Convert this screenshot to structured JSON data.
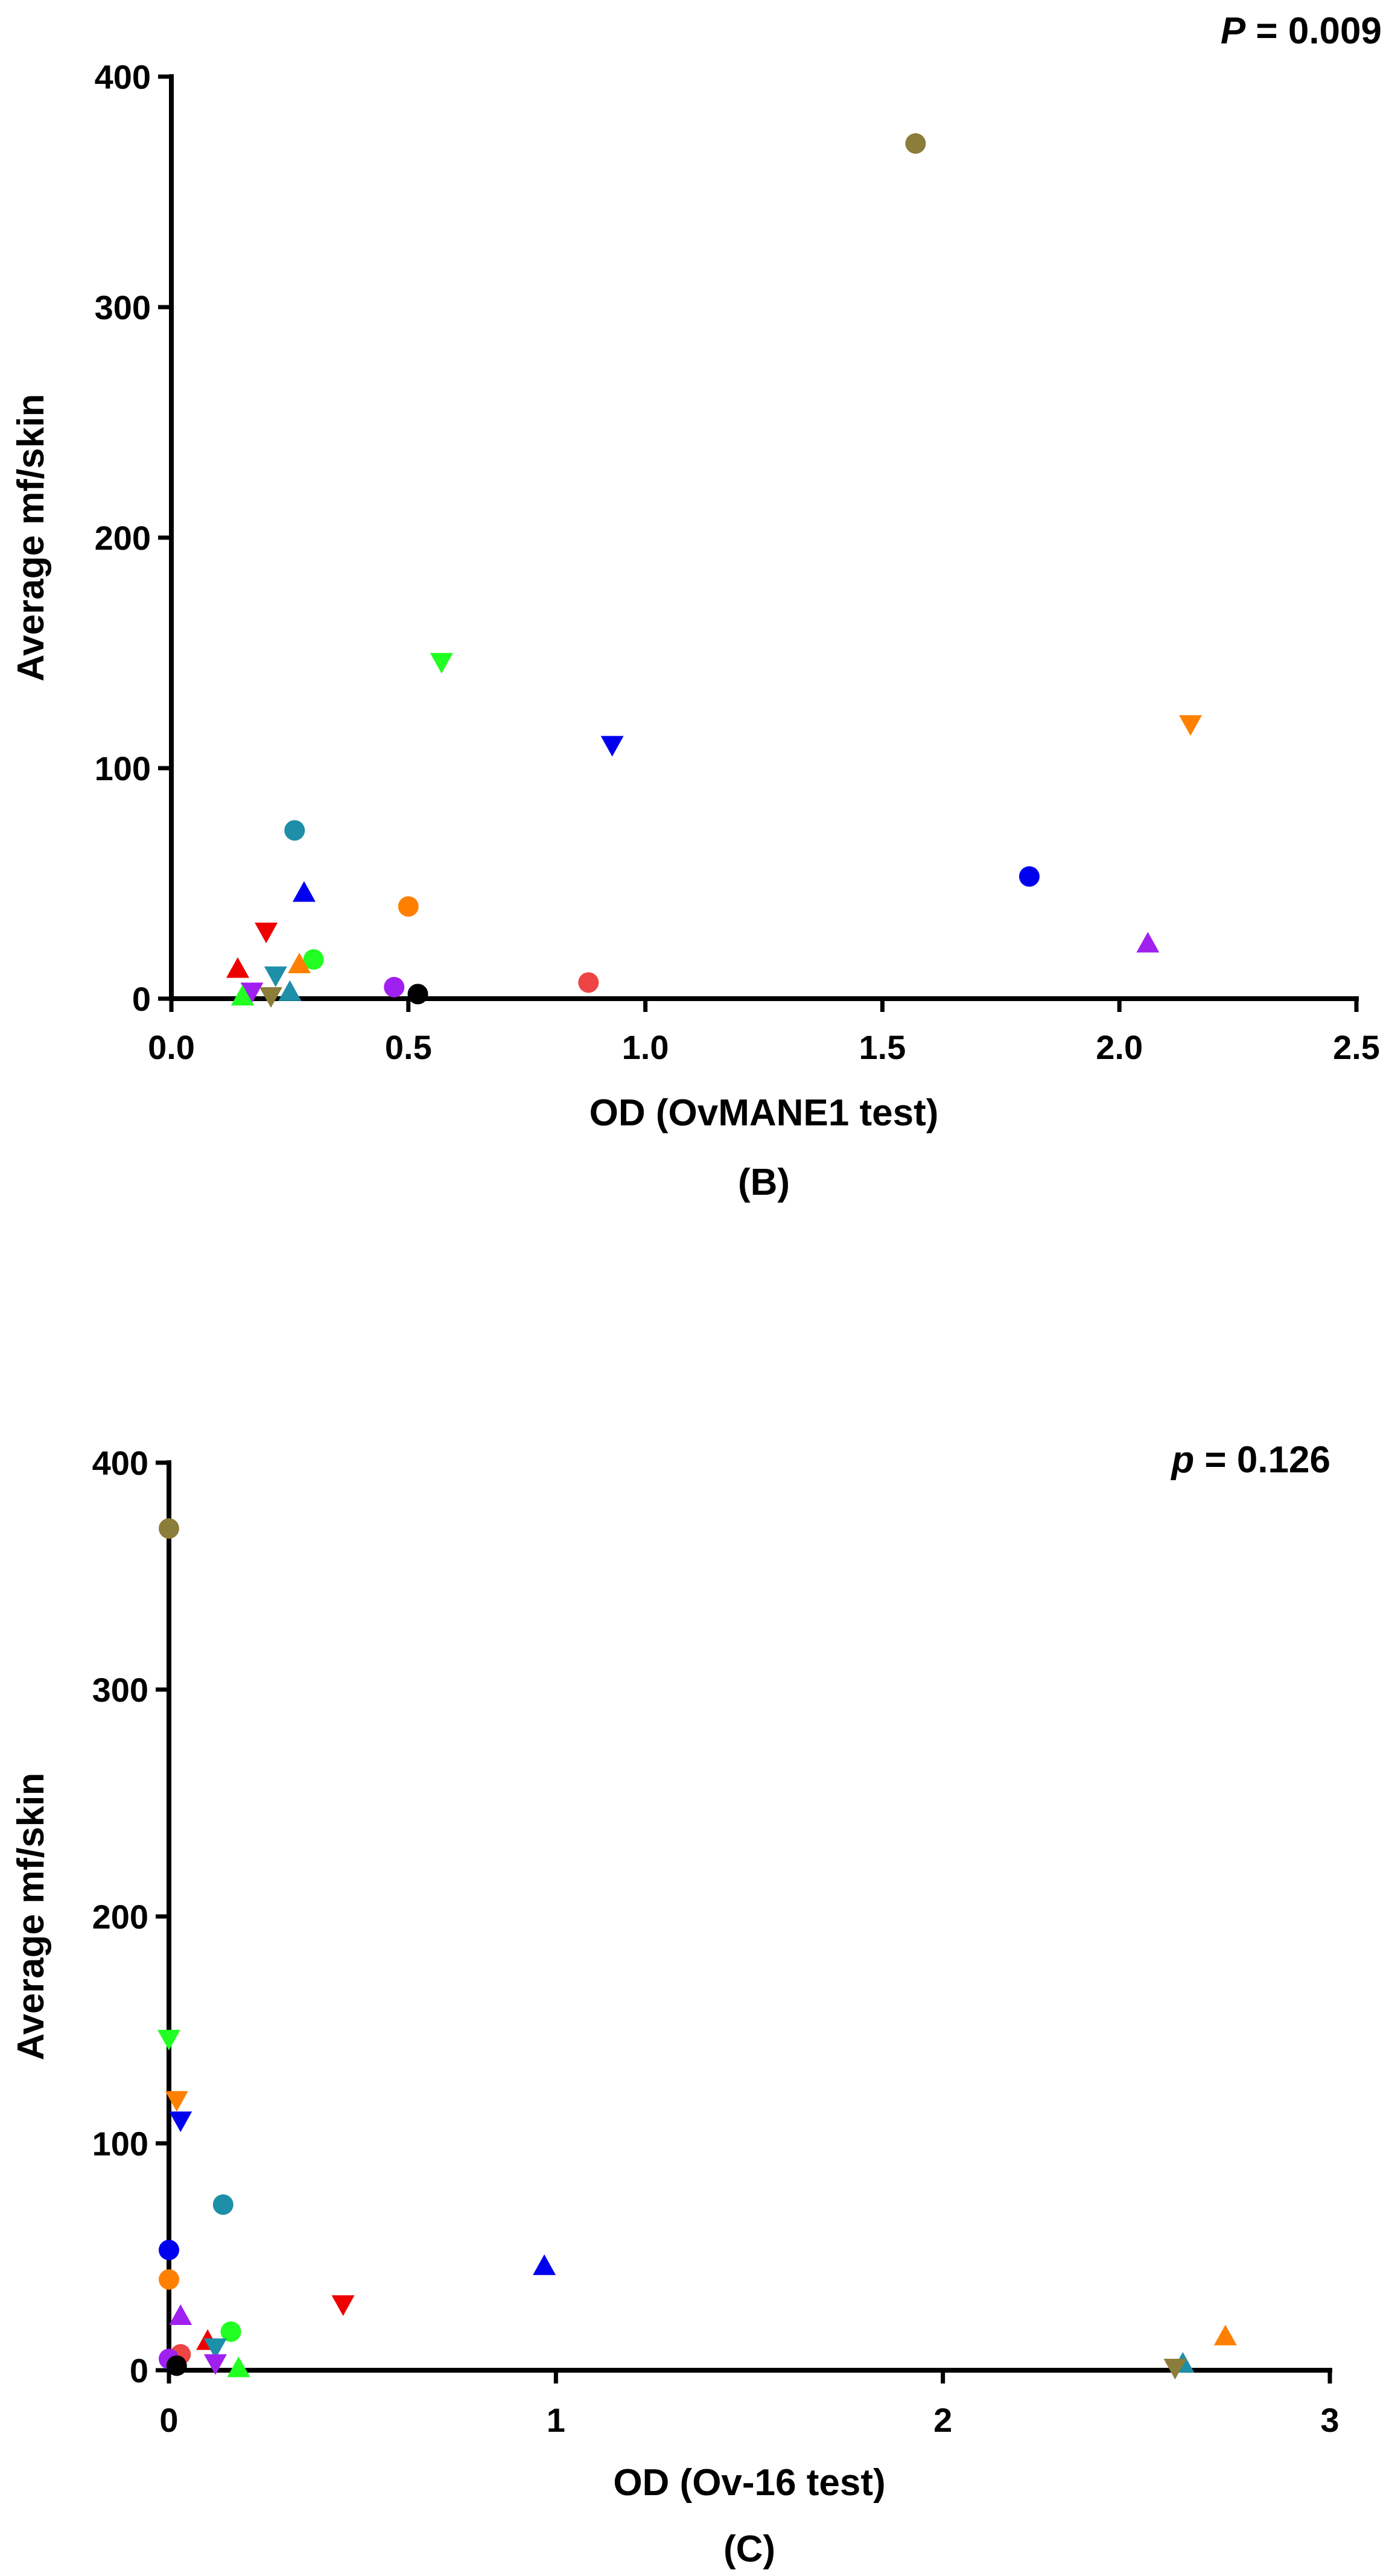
{
  "chart_data": [
    {
      "type": "scatter",
      "panel_label": "(B)",
      "xlabel": "OD (OvMANE1 test)",
      "ylabel": "Average mf/skin",
      "p_value": {
        "symbol": "P",
        "text": " = 0.009"
      },
      "xlim": [
        0,
        2.5
      ],
      "ylim": [
        0,
        400
      ],
      "xticks": [
        "0.0",
        "0.5",
        "1.0",
        "1.5",
        "2.0",
        "2.5"
      ],
      "xtick_values": [
        0,
        0.5,
        1.0,
        1.5,
        2.0,
        2.5
      ],
      "yticks": [
        "0",
        "100",
        "200",
        "300",
        "400"
      ],
      "ytick_values": [
        0,
        100,
        200,
        300,
        400
      ],
      "grid": false,
      "points": [
        {
          "x": 1.57,
          "y": 371,
          "marker": "circle",
          "color": "#8B7D3A"
        },
        {
          "x": 0.57,
          "y": 146,
          "marker": "triangle-down",
          "color": "#22FF22"
        },
        {
          "x": 2.15,
          "y": 119,
          "marker": "triangle-down",
          "color": "#FF8000"
        },
        {
          "x": 0.93,
          "y": 110,
          "marker": "triangle-down",
          "color": "#0000EE"
        },
        {
          "x": 0.26,
          "y": 73,
          "marker": "circle",
          "color": "#1E8FA8"
        },
        {
          "x": 1.81,
          "y": 53,
          "marker": "circle",
          "color": "#0000EE"
        },
        {
          "x": 0.28,
          "y": 46,
          "marker": "triangle-up",
          "color": "#0000EE"
        },
        {
          "x": 0.5,
          "y": 40,
          "marker": "circle",
          "color": "#FF8000"
        },
        {
          "x": 0.2,
          "y": 29,
          "marker": "triangle-down",
          "color": "#EE0000"
        },
        {
          "x": 2.06,
          "y": 24,
          "marker": "triangle-up",
          "color": "#A020F0"
        },
        {
          "x": 0.3,
          "y": 17,
          "marker": "circle",
          "color": "#22FF22"
        },
        {
          "x": 0.27,
          "y": 15,
          "marker": "triangle-up",
          "color": "#FF8000"
        },
        {
          "x": 0.14,
          "y": 13,
          "marker": "triangle-up",
          "color": "#EE0000"
        },
        {
          "x": 0.22,
          "y": 10,
          "marker": "triangle-down",
          "color": "#1E8FA8"
        },
        {
          "x": 0.88,
          "y": 7,
          "marker": "circle",
          "color": "#EE4444"
        },
        {
          "x": 0.47,
          "y": 5,
          "marker": "circle",
          "color": "#A020F0"
        },
        {
          "x": 0.17,
          "y": 3,
          "marker": "triangle-down",
          "color": "#A020F0"
        },
        {
          "x": 0.25,
          "y": 3,
          "marker": "triangle-up",
          "color": "#1E8FA8"
        },
        {
          "x": 0.52,
          "y": 2,
          "marker": "circle",
          "color": "#000000"
        },
        {
          "x": 0.15,
          "y": 1,
          "marker": "triangle-up",
          "color": "#22FF22"
        },
        {
          "x": 0.21,
          "y": 1,
          "marker": "triangle-down",
          "color": "#8B7D3A"
        }
      ]
    },
    {
      "type": "scatter",
      "panel_label": "(C)",
      "xlabel": "OD (Ov-16 test)",
      "ylabel": "Average mf/skin",
      "p_value": {
        "symbol": "p",
        "text": " = 0.126"
      },
      "xlim": [
        0,
        3
      ],
      "ylim": [
        0,
        400
      ],
      "xticks": [
        "0",
        "1",
        "2",
        "3"
      ],
      "xtick_values": [
        0,
        1,
        2,
        3
      ],
      "yticks": [
        "0",
        "100",
        "200",
        "300",
        "400"
      ],
      "ytick_values": [
        0,
        100,
        200,
        300,
        400
      ],
      "grid": false,
      "points": [
        {
          "x": 0.0,
          "y": 371,
          "marker": "circle",
          "color": "#8B7D3A"
        },
        {
          "x": 0.0,
          "y": 146,
          "marker": "triangle-down",
          "color": "#22FF22"
        },
        {
          "x": 0.02,
          "y": 119,
          "marker": "triangle-down",
          "color": "#FF8000"
        },
        {
          "x": 0.03,
          "y": 110,
          "marker": "triangle-down",
          "color": "#0000EE"
        },
        {
          "x": 0.14,
          "y": 73,
          "marker": "circle",
          "color": "#1E8FA8"
        },
        {
          "x": 0.0,
          "y": 53,
          "marker": "circle",
          "color": "#0000EE"
        },
        {
          "x": 0.97,
          "y": 46,
          "marker": "triangle-up",
          "color": "#0000EE"
        },
        {
          "x": 0.0,
          "y": 40,
          "marker": "circle",
          "color": "#FF8000"
        },
        {
          "x": 0.45,
          "y": 29,
          "marker": "triangle-down",
          "color": "#EE0000"
        },
        {
          "x": 0.03,
          "y": 24,
          "marker": "triangle-up",
          "color": "#A020F0"
        },
        {
          "x": 0.16,
          "y": 17,
          "marker": "circle",
          "color": "#22FF22"
        },
        {
          "x": 2.73,
          "y": 15,
          "marker": "triangle-up",
          "color": "#FF8000"
        },
        {
          "x": 0.1,
          "y": 13,
          "marker": "triangle-up",
          "color": "#EE0000"
        },
        {
          "x": 0.12,
          "y": 10,
          "marker": "triangle-down",
          "color": "#1E8FA8"
        },
        {
          "x": 0.03,
          "y": 7,
          "marker": "circle",
          "color": "#EE4444"
        },
        {
          "x": 0.0,
          "y": 5,
          "marker": "circle",
          "color": "#A020F0"
        },
        {
          "x": 0.12,
          "y": 3,
          "marker": "triangle-down",
          "color": "#A020F0"
        },
        {
          "x": 2.62,
          "y": 3,
          "marker": "triangle-up",
          "color": "#1E8FA8"
        },
        {
          "x": 0.02,
          "y": 2,
          "marker": "circle",
          "color": "#000000"
        },
        {
          "x": 0.18,
          "y": 1,
          "marker": "triangle-up",
          "color": "#22FF22"
        },
        {
          "x": 2.6,
          "y": 1,
          "marker": "triangle-down",
          "color": "#8B7D3A"
        }
      ]
    }
  ]
}
